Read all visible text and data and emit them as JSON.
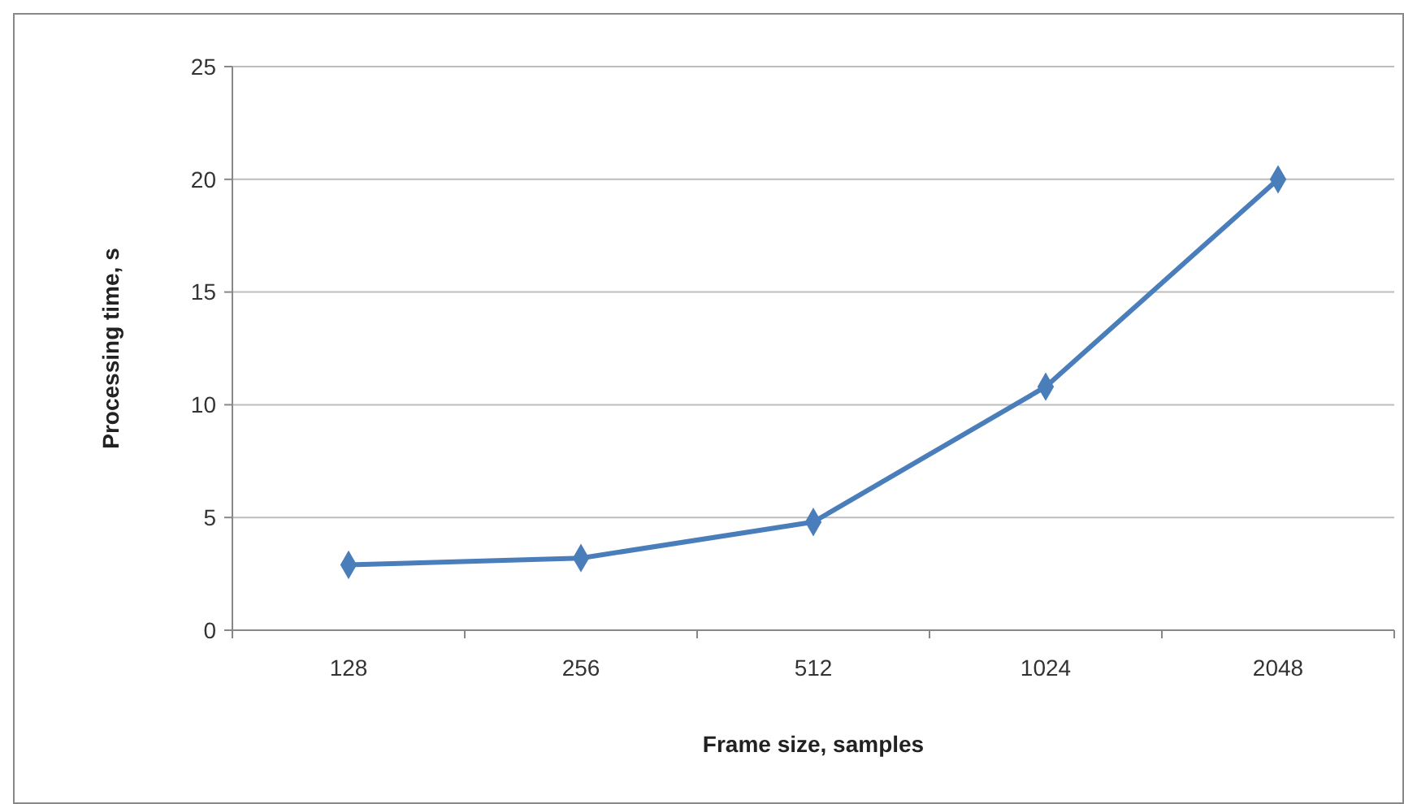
{
  "chart_data": {
    "type": "line",
    "xlabel": "Frame size, samples",
    "ylabel": "Processing time, s",
    "categories": [
      "128",
      "256",
      "512",
      "1024",
      "2048"
    ],
    "series": [
      {
        "color": "#4a7ebb",
        "values": [
          2.9,
          3.2,
          4.8,
          10.8,
          20
        ]
      }
    ],
    "ylim": [
      0,
      25
    ],
    "yticks": [
      0,
      5,
      10,
      15,
      20,
      25
    ],
    "grid": "y",
    "marker": "diamond",
    "line_style": "solid"
  }
}
